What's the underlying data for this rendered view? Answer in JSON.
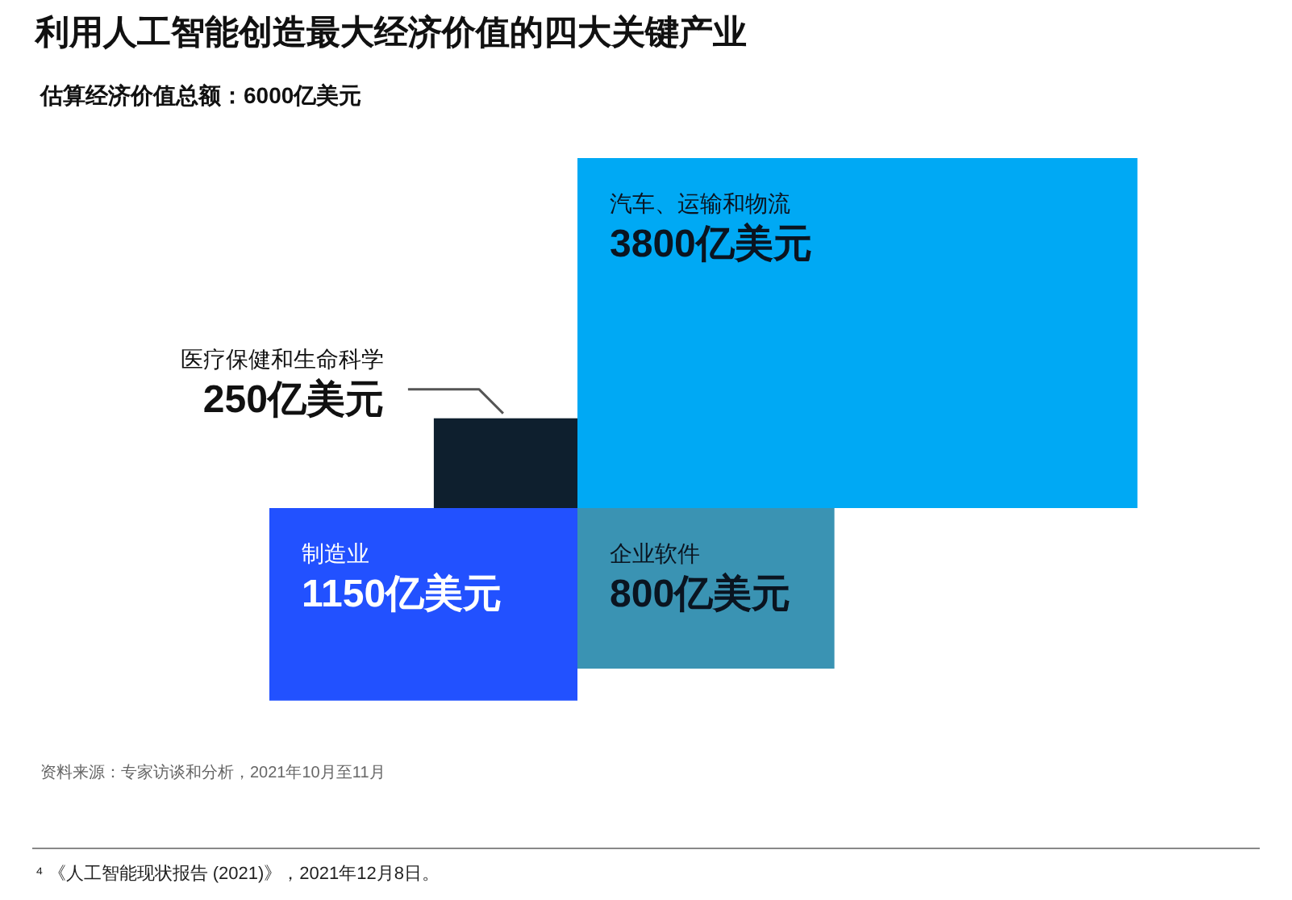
{
  "chart_data": {
    "type": "other",
    "title": "利用人工智能创造最大经济价值的四大关键产业",
    "subtitle": "估算经济价值总额：6000亿美元",
    "categories": [
      "汽车、运输和物流",
      "医疗保健和生命科学",
      "制造业",
      "企业软件"
    ],
    "values": [
      3800,
      250,
      1150,
      800
    ],
    "colors": [
      "#00a9f4",
      "#0e1f2e",
      "#2251ff",
      "#3a93b3"
    ],
    "value_labels": [
      "3800亿美元",
      "250亿美元",
      "1150亿美元",
      "800亿美元"
    ],
    "annotations": [
      "资料来源：专家访谈和分析，2021年10月至11月",
      "⁴ 《人工智能现状报告 (2021)》，2021年12月8日。"
    ]
  }
}
